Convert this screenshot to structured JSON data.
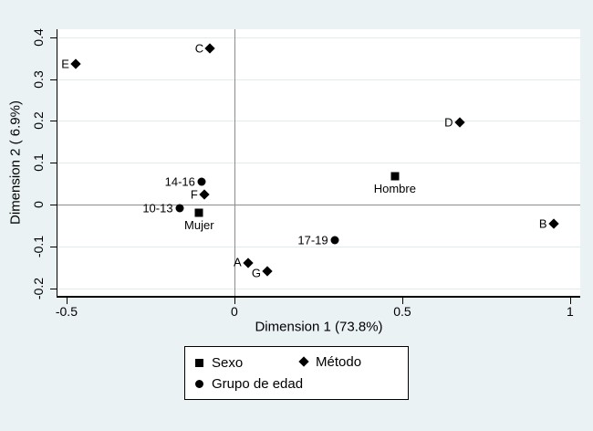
{
  "figure": {
    "bg_color": "#eaf2f3",
    "plot_bg_color": "#ffffff",
    "grid_color": "#e0ebee",
    "refline_color": "#8c8c8c",
    "axis_color": "#000000",
    "marker_color": "#000000"
  },
  "chart_data": {
    "type": "scatter",
    "title": "",
    "xlabel": "Dimension 1 (73.8%)",
    "ylabel": "Dimension 2 ( 6.9%)",
    "xlim": [
      -0.527,
      1.03
    ],
    "ylim": [
      -0.218,
      0.419
    ],
    "grid": "horizontal-only",
    "reference_lines": {
      "vertical_at_x": 0,
      "horizontal_at_y": 0
    },
    "legend_position": "bottom-center",
    "x_ticks": [
      {
        "value": -0.5,
        "label": "-0.5"
      },
      {
        "value": 0,
        "label": "0"
      },
      {
        "value": 0.5,
        "label": "0.5"
      },
      {
        "value": 1,
        "label": "1"
      }
    ],
    "y_ticks": [
      {
        "value": 0.4,
        "label": "0.4"
      },
      {
        "value": 0.3,
        "label": "0.3"
      },
      {
        "value": 0.2,
        "label": "0.2"
      },
      {
        "value": 0.1,
        "label": "0.1"
      },
      {
        "value": 0,
        "label": "0"
      },
      {
        "value": -0.1,
        "label": "-0.1"
      },
      {
        "value": -0.2,
        "label": "-0.2"
      }
    ],
    "series": [
      {
        "name": "Sexo",
        "marker": "square",
        "points": [
          {
            "label": "Hombre",
            "x": 0.478,
            "y": 0.068,
            "label_pos": "below"
          },
          {
            "label": "Mujer",
            "x": -0.105,
            "y": -0.019,
            "label_pos": "below"
          }
        ]
      },
      {
        "name": "Método",
        "marker": "diamond",
        "points": [
          {
            "label": "A",
            "x": 0.04,
            "y": -0.14,
            "label_pos": "left",
            "label_dy": -1
          },
          {
            "label": "B",
            "x": 0.95,
            "y": -0.046,
            "label_pos": "left"
          },
          {
            "label": "C",
            "x": -0.073,
            "y": 0.373,
            "label_pos": "left"
          },
          {
            "label": "D",
            "x": 0.67,
            "y": 0.196,
            "label_pos": "left"
          },
          {
            "label": "E",
            "x": -0.473,
            "y": 0.336,
            "label_pos": "left"
          },
          {
            "label": "F",
            "x": -0.09,
            "y": 0.024,
            "label_pos": "left"
          },
          {
            "label": "G",
            "x": 0.098,
            "y": -0.159,
            "label_pos": "left",
            "label_dy": 2
          }
        ]
      },
      {
        "name": "Grupo de edad",
        "marker": "circle",
        "points": [
          {
            "label": "10-13",
            "x": -0.164,
            "y": -0.008,
            "label_pos": "left"
          },
          {
            "label": "14-16",
            "x": -0.098,
            "y": 0.055,
            "label_pos": "left"
          },
          {
            "label": "17-19",
            "x": 0.298,
            "y": -0.085,
            "label_pos": "left"
          }
        ]
      }
    ]
  },
  "legend": {
    "items": [
      {
        "label": "Sexo",
        "marker": "square"
      },
      {
        "label": "Método",
        "marker": "diamond"
      },
      {
        "label": "Grupo de edad",
        "marker": "circle"
      }
    ]
  }
}
